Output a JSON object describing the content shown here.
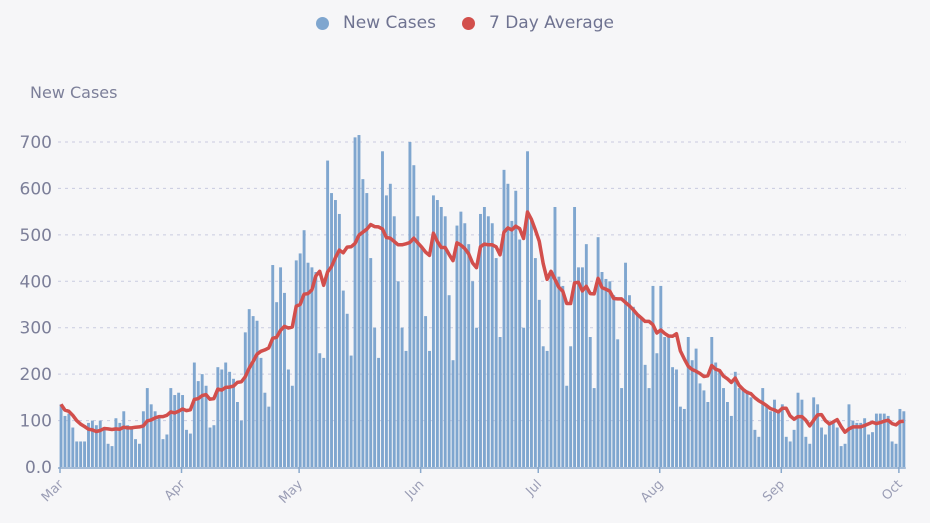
{
  "colors": {
    "bar": "#7fa6cf",
    "line": "#d24f4c",
    "grid": "#c9cbe0",
    "text": "#7c7f99"
  },
  "chart_data": {
    "type": "bar",
    "title": "",
    "xlabel": "",
    "ylabel": "New Cases",
    "ylim": [
      0,
      700
    ],
    "yticks": [
      "0.0",
      "100",
      "200",
      "300",
      "400",
      "500",
      "600",
      "700"
    ],
    "ytick_values": [
      0,
      100,
      200,
      300,
      400,
      500,
      600,
      700
    ],
    "grid": true,
    "legend": {
      "placement": "top-center",
      "entries": [
        "New Cases",
        "7 Day Average"
      ]
    },
    "x_start": "Mar 1",
    "month_ticks": [
      {
        "label": "Mar",
        "day": 0
      },
      {
        "label": "Apr",
        "day": 31
      },
      {
        "label": "May",
        "day": 61
      },
      {
        "label": "Jun",
        "day": 92
      },
      {
        "label": "Jul",
        "day": 122
      },
      {
        "label": "Aug",
        "day": 153
      },
      {
        "label": "Sep",
        "day": 184
      },
      {
        "label": "Oct",
        "day": 214
      }
    ],
    "series": [
      {
        "name": "New Cases",
        "type": "bar",
        "values": [
          135,
          110,
          115,
          85,
          55,
          55,
          55,
          95,
          100,
          90,
          100,
          85,
          50,
          45,
          105,
          95,
          120,
          90,
          85,
          60,
          50,
          120,
          170,
          135,
          120,
          105,
          60,
          70,
          170,
          155,
          160,
          155,
          80,
          72,
          225,
          185,
          200,
          175,
          85,
          90,
          215,
          210,
          225,
          205,
          190,
          140,
          100,
          290,
          340,
          325,
          315,
          235,
          160,
          130,
          435,
          355,
          430,
          375,
          210,
          175,
          445,
          460,
          510,
          440,
          430,
          420,
          245,
          235,
          660,
          590,
          575,
          545,
          380,
          330,
          240,
          710,
          715,
          620,
          590,
          450,
          300,
          235,
          680,
          585,
          610,
          540,
          400,
          300,
          250,
          700,
          650,
          540,
          475,
          325,
          250,
          585,
          575,
          560,
          540,
          370,
          230,
          520,
          550,
          525,
          480,
          400,
          300,
          545,
          560,
          540,
          525,
          450,
          280,
          640,
          610,
          530,
          595,
          490,
          300,
          680,
          530,
          450,
          360,
          260,
          250,
          420,
          560,
          410,
          390,
          175,
          260,
          560,
          430,
          430,
          480,
          280,
          170,
          495,
          420,
          405,
          400,
          370,
          275,
          170,
          440,
          370,
          345,
          330,
          320,
          220,
          170,
          390,
          245,
          390,
          280,
          280,
          215,
          210,
          130,
          125,
          280,
          230,
          255,
          180,
          165,
          140,
          280,
          225,
          210,
          170,
          140,
          110,
          205,
          170,
          165,
          165,
          150,
          80,
          65,
          170,
          130,
          120,
          145,
          120,
          135,
          65,
          55,
          80,
          160,
          145,
          65,
          50,
          150,
          135,
          85,
          70,
          95,
          95,
          85,
          45,
          50,
          135,
          100,
          95,
          95,
          105,
          70,
          75,
          115,
          115,
          115,
          110,
          55,
          50,
          125,
          120
        ]
      },
      {
        "name": "7 Day Average",
        "type": "line",
        "method": "trailing 7-day mean of New Cases"
      }
    ]
  }
}
